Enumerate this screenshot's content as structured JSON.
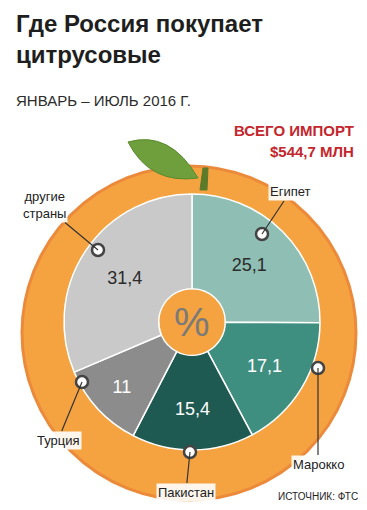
{
  "chart_data": {
    "type": "pie",
    "title": "Где Россия покупает цитрусовые",
    "subtitle": "ЯНВАРЬ – ИЮЛЬ 2016 Г.",
    "annotations": [
      "ВСЕГО ИМПОРТ",
      "$544,7 МЛН",
      "%",
      "ИСТОЧНИК: ФТС"
    ],
    "categories": [
      "Египет",
      "Марокко",
      "Пакистан",
      "Турция",
      "другие страны"
    ],
    "values": [
      25.1,
      17.1,
      15.4,
      11,
      31.4
    ],
    "value_labels": [
      "25,1",
      "17,1",
      "15,4",
      "11",
      "31,4"
    ],
    "colors": [
      "#8fbfb4",
      "#3f8f80",
      "#1f5a52",
      "#8c8c8c",
      "#c9c9c9"
    ],
    "data_labels": true
  }
}
